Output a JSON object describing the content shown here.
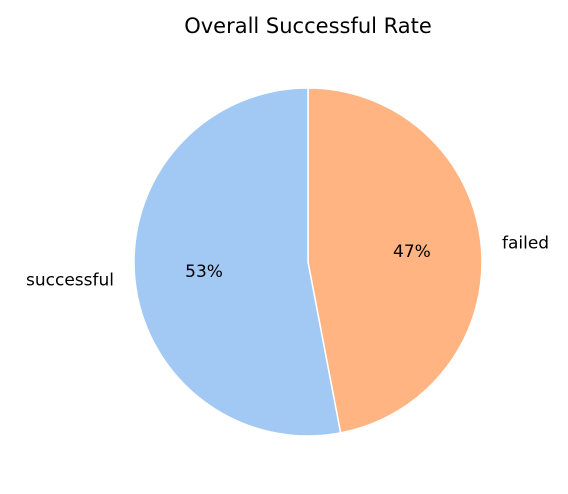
{
  "chart_data": {
    "type": "pie",
    "title": "Overall Successful Rate",
    "slices": [
      {
        "label": "failed",
        "value": 47,
        "pct_label": "47%",
        "color": "#FFB482"
      },
      {
        "label": "successful",
        "value": 53,
        "pct_label": "53%",
        "color": "#A1C9F4"
      }
    ],
    "start_angle_deg": 90,
    "direction": "clockwise"
  }
}
